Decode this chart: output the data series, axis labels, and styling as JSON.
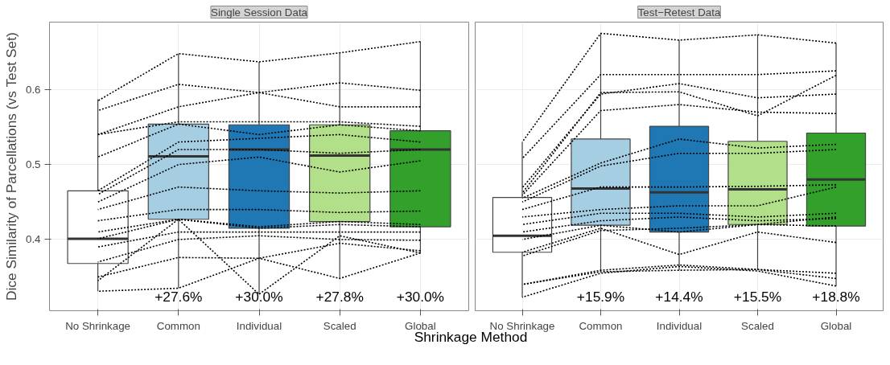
{
  "chart_data": [
    {
      "type": "box",
      "title": "Single Session Data",
      "ylabel": "Dice Similarity of Parcellations (vs Test Set)",
      "xlabel": "Shrinkage Method",
      "categories": [
        "No Shrinkage",
        "Common",
        "Individual",
        "Scaled",
        "Global"
      ],
      "colors": [
        "#ffffff",
        "#a6cee3",
        "#1f78b4",
        "#b2df8a",
        "#33a02c"
      ],
      "boxes": [
        {
          "low": 0.331,
          "q1": 0.368,
          "median": 0.401,
          "q3": 0.465,
          "high": 0.587
        },
        {
          "low": 0.335,
          "q1": 0.427,
          "median": 0.511,
          "q3": 0.554,
          "high": 0.648
        },
        {
          "low": 0.327,
          "q1": 0.415,
          "median": 0.52,
          "q3": 0.553,
          "high": 0.637
        },
        {
          "low": 0.348,
          "q1": 0.424,
          "median": 0.512,
          "q3": 0.553,
          "high": 0.649
        },
        {
          "low": 0.382,
          "q1": 0.417,
          "median": 0.52,
          "q3": 0.545,
          "high": 0.664
        }
      ],
      "series": [
        {
          "type": "line",
          "line_style": "dotted",
          "color": "#000000",
          "values": [
            0.585,
            0.648,
            0.637,
            0.649,
            0.664
          ]
        },
        {
          "type": "line",
          "line_style": "dotted",
          "color": "#000000",
          "values": [
            0.572,
            0.607,
            0.596,
            0.609,
            0.599
          ]
        },
        {
          "type": "line",
          "line_style": "dotted",
          "color": "#000000",
          "values": [
            0.54,
            0.577,
            0.596,
            0.577,
            0.577
          ]
        },
        {
          "type": "line",
          "line_style": "dotted",
          "color": "#000000",
          "values": [
            0.54,
            0.557,
            0.557,
            0.557,
            0.551
          ]
        },
        {
          "type": "line",
          "line_style": "dotted",
          "color": "#000000",
          "values": [
            0.51,
            0.554,
            0.54,
            0.553,
            0.545
          ]
        },
        {
          "type": "line",
          "line_style": "dotted",
          "color": "#000000",
          "values": [
            0.465,
            0.53,
            0.535,
            0.54,
            0.53
          ]
        },
        {
          "type": "line",
          "line_style": "dotted",
          "color": "#000000",
          "values": [
            0.46,
            0.52,
            0.52,
            0.515,
            0.52
          ]
        },
        {
          "type": "line",
          "line_style": "dotted",
          "color": "#000000",
          "values": [
            0.45,
            0.5,
            0.51,
            0.49,
            0.505
          ]
        },
        {
          "type": "line",
          "line_style": "dotted",
          "color": "#000000",
          "values": [
            0.44,
            0.47,
            0.465,
            0.462,
            0.465
          ]
        },
        {
          "type": "line",
          "line_style": "dotted",
          "color": "#000000",
          "values": [
            0.425,
            0.44,
            0.44,
            0.436,
            0.438
          ]
        },
        {
          "type": "line",
          "line_style": "dotted",
          "color": "#000000",
          "values": [
            0.41,
            0.427,
            0.417,
            0.424,
            0.42
          ]
        },
        {
          "type": "line",
          "line_style": "dotted",
          "color": "#000000",
          "values": [
            0.401,
            0.427,
            0.415,
            0.42,
            0.417
          ]
        },
        {
          "type": "line",
          "line_style": "dotted",
          "color": "#000000",
          "values": [
            0.39,
            0.41,
            0.41,
            0.41,
            0.41
          ]
        },
        {
          "type": "line",
          "line_style": "dotted",
          "color": "#000000",
          "values": [
            0.37,
            0.4,
            0.405,
            0.4,
            0.399
          ]
        },
        {
          "type": "line",
          "line_style": "dotted",
          "color": "#000000",
          "values": [
            0.35,
            0.376,
            0.375,
            0.395,
            0.385
          ]
        },
        {
          "type": "line",
          "line_style": "dotted",
          "color": "#000000",
          "values": [
            0.345,
            0.427,
            0.327,
            0.405,
            0.382
          ]
        },
        {
          "type": "line",
          "line_style": "dotted",
          "color": "#000000",
          "values": [
            0.331,
            0.335,
            0.375,
            0.348,
            0.382
          ]
        }
      ],
      "annotations": [
        "+27.6%",
        "+30.0%",
        "+27.8%",
        "+30.0%"
      ],
      "ylim": [
        0.305,
        0.69
      ],
      "yticks": [
        0.4,
        0.5,
        0.6
      ],
      "grid": true
    },
    {
      "type": "box",
      "title": "Test−Retest Data",
      "categories": [
        "No Shrinkage",
        "Common",
        "Individual",
        "Scaled",
        "Global"
      ],
      "colors": [
        "#ffffff",
        "#a6cee3",
        "#1f78b4",
        "#b2df8a",
        "#33a02c"
      ],
      "boxes": [
        {
          "low": 0.323,
          "q1": 0.383,
          "median": 0.405,
          "q3": 0.456,
          "high": 0.53
        },
        {
          "low": 0.358,
          "q1": 0.419,
          "median": 0.468,
          "q3": 0.534,
          "high": 0.675
        },
        {
          "low": 0.359,
          "q1": 0.41,
          "median": 0.463,
          "q3": 0.551,
          "high": 0.666
        },
        {
          "low": 0.36,
          "q1": 0.42,
          "median": 0.467,
          "q3": 0.531,
          "high": 0.673
        },
        {
          "low": 0.338,
          "q1": 0.418,
          "median": 0.48,
          "q3": 0.542,
          "high": 0.662
        }
      ],
      "series": [
        {
          "type": "line",
          "line_style": "dotted",
          "color": "#000000",
          "values": [
            0.53,
            0.675,
            0.666,
            0.673,
            0.662
          ]
        },
        {
          "type": "line",
          "line_style": "dotted",
          "color": "#000000",
          "values": [
            0.508,
            0.62,
            0.62,
            0.62,
            0.625
          ]
        },
        {
          "type": "line",
          "line_style": "dotted",
          "color": "#000000",
          "values": [
            0.469,
            0.594,
            0.608,
            0.589,
            0.594
          ]
        },
        {
          "type": "line",
          "line_style": "dotted",
          "color": "#000000",
          "values": [
            0.462,
            0.596,
            0.597,
            0.565,
            0.619
          ]
        },
        {
          "type": "line",
          "line_style": "dotted",
          "color": "#000000",
          "values": [
            0.459,
            0.572,
            0.58,
            0.57,
            0.568
          ]
        },
        {
          "type": "line",
          "line_style": "dotted",
          "color": "#000000",
          "values": [
            0.455,
            0.502,
            0.534,
            0.522,
            0.527
          ]
        },
        {
          "type": "line",
          "line_style": "dotted",
          "color": "#000000",
          "values": [
            0.45,
            0.498,
            0.515,
            0.515,
            0.52
          ]
        },
        {
          "type": "line",
          "line_style": "dotted",
          "color": "#000000",
          "values": [
            0.44,
            0.47,
            0.47,
            0.471,
            0.473
          ]
        },
        {
          "type": "line",
          "line_style": "dotted",
          "color": "#000000",
          "values": [
            0.43,
            0.44,
            0.445,
            0.445,
            0.47
          ]
        },
        {
          "type": "line",
          "line_style": "dotted",
          "color": "#000000",
          "values": [
            0.42,
            0.435,
            0.435,
            0.43,
            0.435
          ]
        },
        {
          "type": "line",
          "line_style": "dotted",
          "color": "#000000",
          "values": [
            0.41,
            0.425,
            0.43,
            0.425,
            0.428
          ]
        },
        {
          "type": "line",
          "line_style": "dotted",
          "color": "#000000",
          "values": [
            0.4,
            0.419,
            0.41,
            0.42,
            0.418
          ]
        },
        {
          "type": "line",
          "line_style": "dotted",
          "color": "#000000",
          "values": [
            0.383,
            0.415,
            0.38,
            0.41,
            0.396
          ]
        },
        {
          "type": "line",
          "line_style": "dotted",
          "color": "#000000",
          "values": [
            0.378,
            0.412,
            0.415,
            0.42,
            0.43
          ]
        },
        {
          "type": "line",
          "line_style": "dotted",
          "color": "#000000",
          "values": [
            0.34,
            0.359,
            0.366,
            0.36,
            0.355
          ]
        },
        {
          "type": "line",
          "line_style": "dotted",
          "color": "#000000",
          "values": [
            0.34,
            0.357,
            0.359,
            0.36,
            0.348
          ]
        },
        {
          "type": "line",
          "line_style": "dotted",
          "color": "#000000",
          "values": [
            0.323,
            0.355,
            0.364,
            0.358,
            0.338
          ]
        }
      ],
      "annotations": [
        "+15.9%",
        "+14.4%",
        "+15.5%",
        "+18.8%"
      ],
      "ylim": [
        0.305,
        0.69
      ],
      "yticks": [
        0.4,
        0.5,
        0.6
      ],
      "grid": true,
      "tick_labels": "x"
    }
  ]
}
